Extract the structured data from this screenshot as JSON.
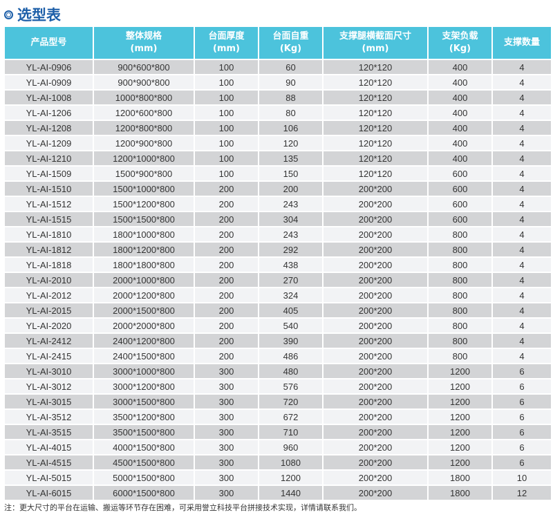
{
  "title": "选型表",
  "headers": [
    {
      "line1": "产品型号",
      "line2": ""
    },
    {
      "line1": "整体规格",
      "line2": "(mm)"
    },
    {
      "line1": "台面厚度",
      "line2": "(mm)"
    },
    {
      "line1": "台面自重",
      "line2": "(Kg)"
    },
    {
      "line1": "支撑腿横截面尺寸",
      "line2": "(mm)"
    },
    {
      "line1": "支架负载",
      "line2": "(Kg)"
    },
    {
      "line1": "支撑数量",
      "line2": ""
    }
  ],
  "rows": [
    [
      "YL-AI-0906",
      "900*600*800",
      "100",
      "60",
      "120*120",
      "400",
      "4"
    ],
    [
      "YL-AI-0909",
      "900*900*800",
      "100",
      "90",
      "120*120",
      "400",
      "4"
    ],
    [
      "YL-AI-1008",
      "1000*800*800",
      "100",
      "88",
      "120*120",
      "400",
      "4"
    ],
    [
      "YL-AI-1206",
      "1200*600*800",
      "100",
      "80",
      "120*120",
      "400",
      "4"
    ],
    [
      "YL-AI-1208",
      "1200*800*800",
      "100",
      "106",
      "120*120",
      "400",
      "4"
    ],
    [
      "YL-AI-1209",
      "1200*900*800",
      "100",
      "120",
      "120*120",
      "400",
      "4"
    ],
    [
      "YL-AI-1210",
      "1200*1000*800",
      "100",
      "135",
      "120*120",
      "400",
      "4"
    ],
    [
      "YL-AI-1509",
      "1500*900*800",
      "100",
      "150",
      "120*120",
      "600",
      "4"
    ],
    [
      "YL-AI-1510",
      "1500*1000*800",
      "200",
      "200",
      "200*200",
      "600",
      "4"
    ],
    [
      "YL-AI-1512",
      "1500*1200*800",
      "200",
      "243",
      "200*200",
      "600",
      "4"
    ],
    [
      "YL-AI-1515",
      "1500*1500*800",
      "200",
      "304",
      "200*200",
      "600",
      "4"
    ],
    [
      "YL-AI-1810",
      "1800*1000*800",
      "200",
      "243",
      "200*200",
      "800",
      "4"
    ],
    [
      "YL-AI-1812",
      "1800*1200*800",
      "200",
      "292",
      "200*200",
      "800",
      "4"
    ],
    [
      "YL-AI-1818",
      "1800*1800*800",
      "200",
      "438",
      "200*200",
      "800",
      "4"
    ],
    [
      "YL-AI-2010",
      "2000*1000*800",
      "200",
      "270",
      "200*200",
      "800",
      "4"
    ],
    [
      "YL-AI-2012",
      "2000*1200*800",
      "200",
      "324",
      "200*200",
      "800",
      "4"
    ],
    [
      "YL-AI-2015",
      "2000*1500*800",
      "200",
      "405",
      "200*200",
      "800",
      "4"
    ],
    [
      "YL-AI-2020",
      "2000*2000*800",
      "200",
      "540",
      "200*200",
      "800",
      "4"
    ],
    [
      "YL-AI-2412",
      "2400*1200*800",
      "200",
      "390",
      "200*200",
      "800",
      "4"
    ],
    [
      "YL-AI-2415",
      "2400*1500*800",
      "200",
      "486",
      "200*200",
      "800",
      "4"
    ],
    [
      "YL-AI-3010",
      "3000*1000*800",
      "300",
      "480",
      "200*200",
      "1200",
      "6"
    ],
    [
      "YL-AI-3012",
      "3000*1200*800",
      "300",
      "576",
      "200*200",
      "1200",
      "6"
    ],
    [
      "YL-AI-3015",
      "3000*1500*800",
      "300",
      "720",
      "200*200",
      "1200",
      "6"
    ],
    [
      "YL-AI-3512",
      "3500*1200*800",
      "300",
      "672",
      "200*200",
      "1200",
      "6"
    ],
    [
      "YL-AI-3515",
      "3500*1500*800",
      "300",
      "710",
      "200*200",
      "1200",
      "6"
    ],
    [
      "YL-AI-4015",
      "4000*1500*800",
      "300",
      "960",
      "200*200",
      "1200",
      "6"
    ],
    [
      "YL-AI-4515",
      "4500*1500*800",
      "300",
      "1080",
      "200*200",
      "1200",
      "6"
    ],
    [
      "YL-AI-5015",
      "5000*1500*800",
      "300",
      "1200",
      "200*200",
      "1800",
      "10"
    ],
    [
      "YL-AI-6015",
      "6000*1500*800",
      "300",
      "1440",
      "200*200",
      "1800",
      "12"
    ]
  ],
  "note": "注：更大尺寸的平台在运输、搬运等环节存在困难，可采用誉立科技平台拼接技术实现，详情请联系我们。",
  "colors": {
    "title": "#1c5ea8",
    "header_bg": "#4cc3dc",
    "row_dark": "#d3d4d6",
    "row_light": "#f2f3f5"
  }
}
